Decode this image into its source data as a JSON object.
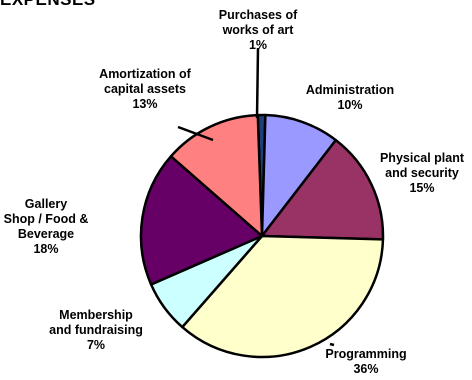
{
  "chart_data": {
    "type": "pie",
    "title": "EXPENSES",
    "slices": [
      {
        "label_lines": [
          "Purchases of",
          "works of art"
        ],
        "value": 1,
        "value_label": "1%",
        "color": "#1f3f7a"
      },
      {
        "label_lines": [
          "Administration"
        ],
        "value": 10,
        "value_label": "10%",
        "color": "#9999ff"
      },
      {
        "label_lines": [
          "Physical plant",
          "and security"
        ],
        "value": 15,
        "value_label": "15%",
        "color": "#993366"
      },
      {
        "label_lines": [
          "Programming"
        ],
        "value": 36,
        "value_label": "36%",
        "color": "#ffffcc"
      },
      {
        "label_lines": [
          "Membership",
          "and fundraising"
        ],
        "value": 7,
        "value_label": "7%",
        "color": "#ccffff"
      },
      {
        "label_lines": [
          "Gallery",
          "Shop / Food &",
          "Beverage"
        ],
        "value": 18,
        "value_label": "18%",
        "color": "#660066"
      },
      {
        "label_lines": [
          "Amortization of",
          "capital assets"
        ],
        "value": 13,
        "value_label": "13%",
        "color": "#ff8080"
      }
    ]
  }
}
